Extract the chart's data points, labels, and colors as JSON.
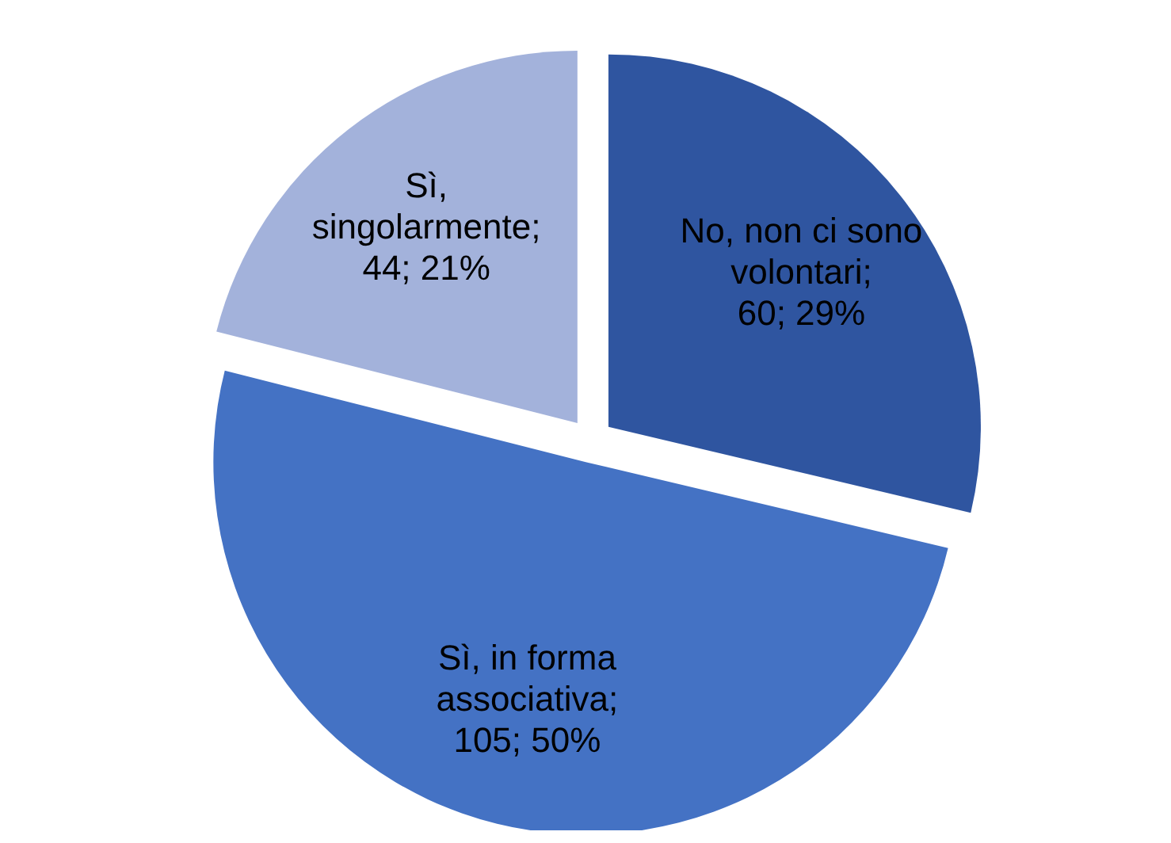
{
  "chart_data": {
    "type": "pie",
    "categories": [
      "No, non ci sono volontari",
      "Sì, in forma associativa",
      "Sì, singolarmente"
    ],
    "values": [
      60,
      105,
      44
    ],
    "colors": [
      "#2f55a0",
      "#4472c4",
      "#a3b2db"
    ],
    "value_labels": [
      "; 60; 29%",
      "; 105; 50%",
      "; 44; 21%"
    ],
    "legend": false
  }
}
